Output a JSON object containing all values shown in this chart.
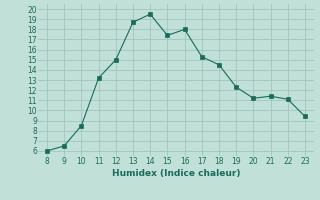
{
  "x": [
    8,
    9,
    10,
    11,
    12,
    13,
    14,
    15,
    16,
    17,
    18,
    19,
    20,
    21,
    22,
    23
  ],
  "y": [
    6.0,
    6.5,
    8.5,
    13.2,
    15.0,
    18.7,
    19.5,
    17.4,
    18.0,
    15.3,
    14.5,
    12.3,
    11.2,
    11.4,
    11.1,
    9.4
  ],
  "line_color": "#1a6b5a",
  "marker_color": "#1a6b5a",
  "bg_color": "#c0e0d8",
  "grid_color": "#9bbfba",
  "xlabel": "Humidex (Indice chaleur)",
  "xlim": [
    7.5,
    23.5
  ],
  "ylim": [
    5.5,
    20.5
  ],
  "xticks": [
    8,
    9,
    10,
    11,
    12,
    13,
    14,
    15,
    16,
    17,
    18,
    19,
    20,
    21,
    22,
    23
  ],
  "yticks": [
    6,
    7,
    8,
    9,
    10,
    11,
    12,
    13,
    14,
    15,
    16,
    17,
    18,
    19,
    20
  ],
  "tick_color": "#1a6b5a",
  "label_fontsize": 6.5,
  "tick_fontsize": 5.5
}
